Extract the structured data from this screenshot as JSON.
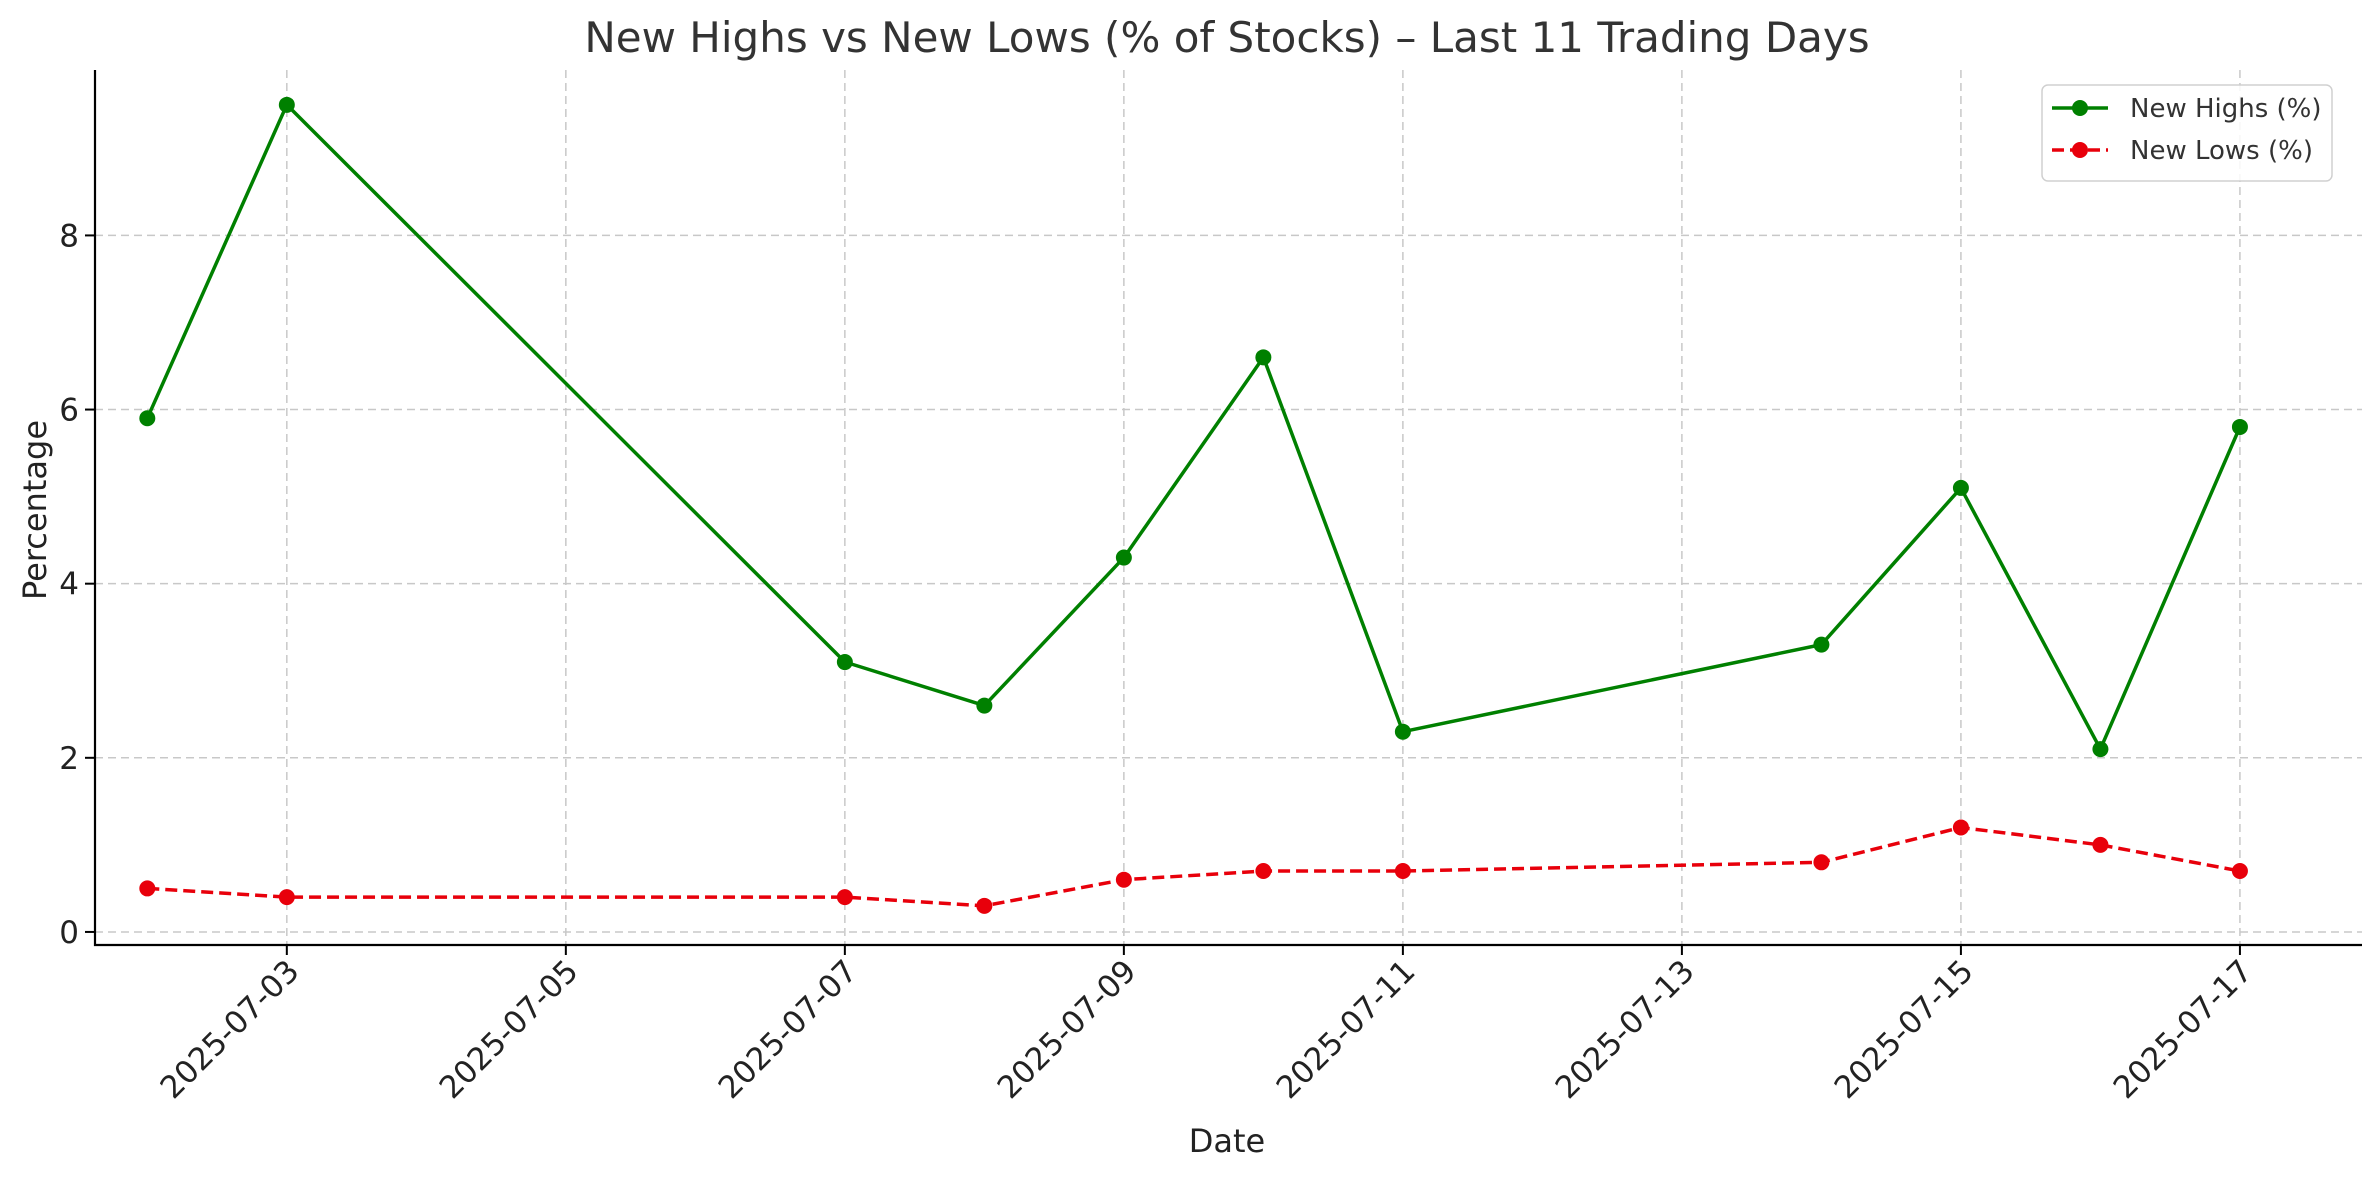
{
  "chart_data": {
    "type": "line",
    "title": "New Highs vs New Lows (% of Stocks) – Last 11 Trading Days",
    "xlabel": "Date",
    "ylabel": "Percentage",
    "x_type": "date",
    "xlim": [
      "2025-07-01 15:00",
      "2025-07-17 21:00"
    ],
    "ylim": [
      -0.15,
      9.9
    ],
    "x_ticks": [
      "2025-07-03",
      "2025-07-05",
      "2025-07-07",
      "2025-07-09",
      "2025-07-11",
      "2025-07-13",
      "2025-07-15",
      "2025-07-17"
    ],
    "y_ticks": [
      "0",
      "2",
      "4",
      "6",
      "8"
    ],
    "grid": true,
    "legend_position": "top-right",
    "x": [
      "2025-07-02",
      "2025-07-03",
      "2025-07-07",
      "2025-07-08",
      "2025-07-09",
      "2025-07-10",
      "2025-07-11",
      "2025-07-14",
      "2025-07-15",
      "2025-07-16",
      "2025-07-17"
    ],
    "series": [
      {
        "name": "New Highs (%)",
        "color": "#008000",
        "line_style": "solid",
        "marker": "circle",
        "values": [
          5.9,
          9.5,
          3.1,
          2.6,
          4.3,
          6.6,
          2.3,
          3.3,
          5.1,
          2.1,
          5.8
        ]
      },
      {
        "name": "New Lows (%)",
        "color": "#e8000b",
        "line_style": "dashed",
        "marker": "circle",
        "values": [
          0.5,
          0.4,
          0.4,
          0.3,
          0.6,
          0.7,
          0.7,
          0.8,
          1.2,
          1.0,
          0.7
        ]
      }
    ]
  }
}
